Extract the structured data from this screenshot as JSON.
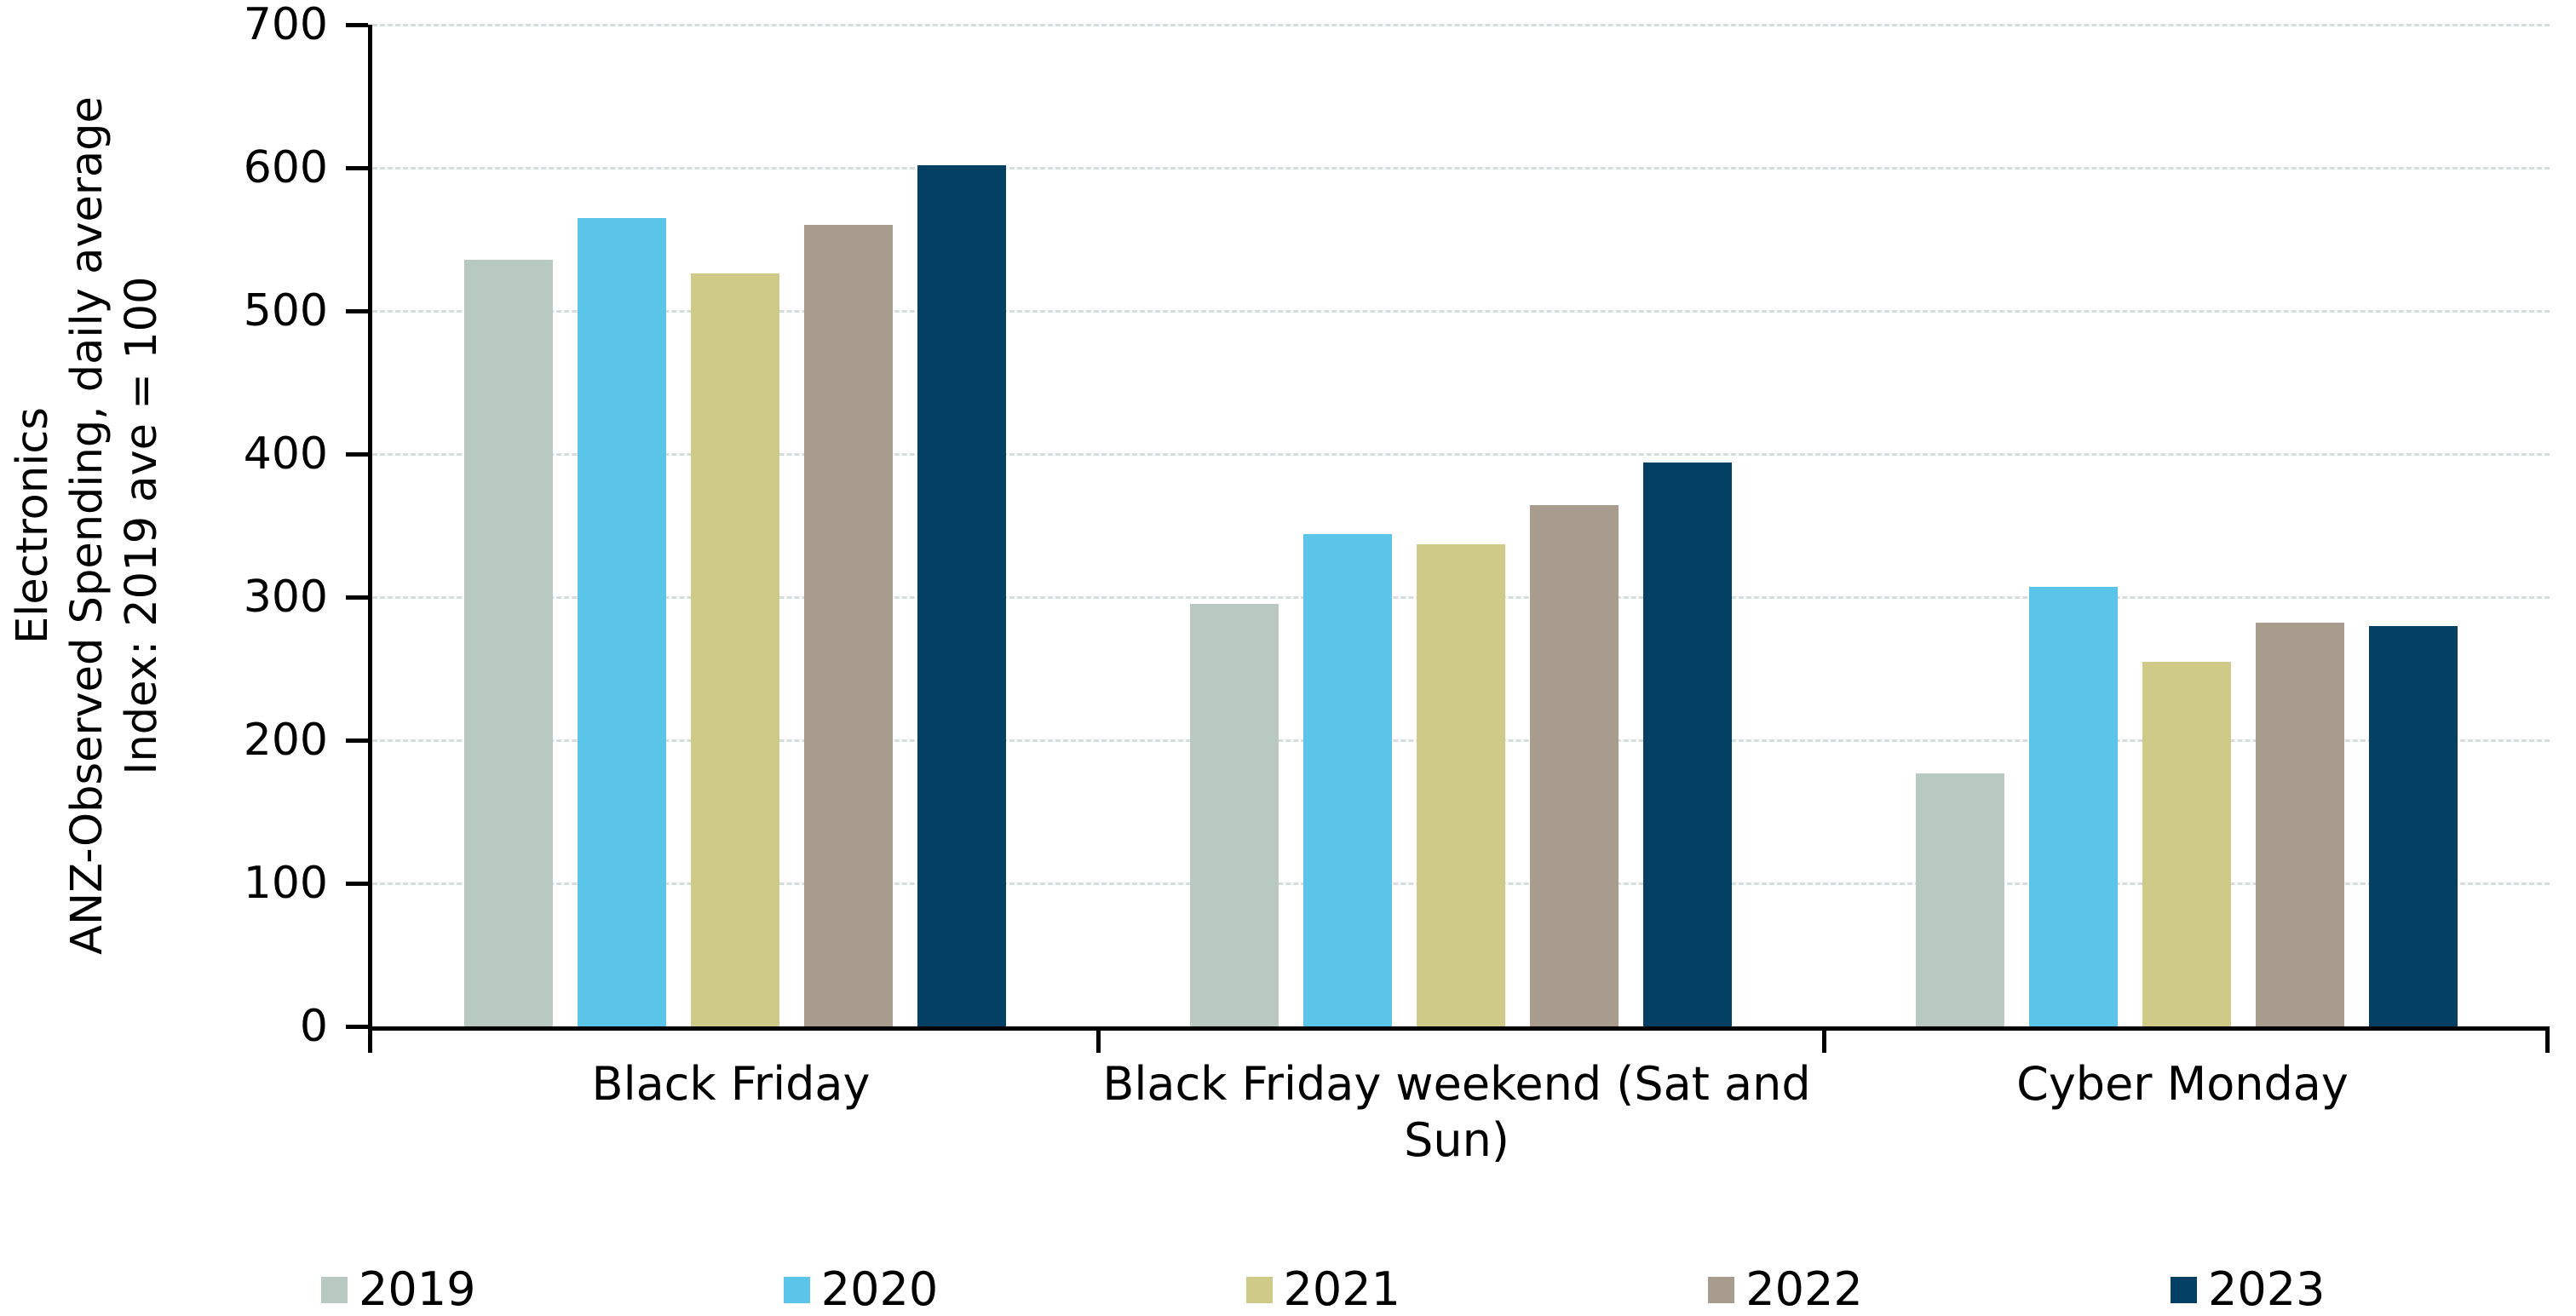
{
  "chart_data": {
    "type": "bar",
    "title": "",
    "ylabel": "Electronics\nANZ-Observed Spending, daily average\nIndex: 2019 ave = 100",
    "categories": [
      "Black Friday",
      "Black Friday weekend (Sat and Sun)",
      "Cyber Monday"
    ],
    "series": [
      {
        "name": "2019",
        "color": "#b7c9c0",
        "values": [
          536,
          295,
          177
        ]
      },
      {
        "name": "2020",
        "color": "#5bc5e9",
        "values": [
          565,
          344,
          307
        ]
      },
      {
        "name": "2021",
        "color": "#cfca87",
        "values": [
          526,
          337,
          255
        ]
      },
      {
        "name": "2022",
        "color": "#a89c8f",
        "values": [
          560,
          364,
          282
        ]
      },
      {
        "name": "2023",
        "color": "#034063",
        "values": [
          602,
          394,
          280
        ]
      }
    ],
    "ylim": [
      0,
      700
    ],
    "yticks": [
      "0",
      "100",
      "200",
      "300",
      "400",
      "500",
      "600",
      "700"
    ],
    "grid": "horizontal-dashed",
    "gridline_color": "#d5dddf",
    "axis_color": "#000000",
    "legend_position": "bottom"
  }
}
